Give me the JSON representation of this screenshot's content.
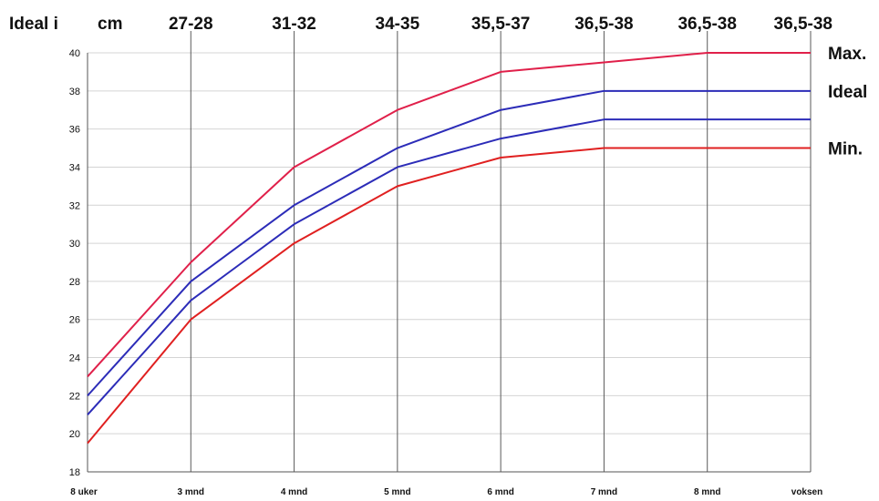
{
  "chart_data": {
    "type": "line",
    "title": "",
    "header": {
      "left": "Ideal i",
      "unit": "cm"
    },
    "categories": [
      "8 uker",
      "3 mnd",
      "4 mnd",
      "5 mnd",
      "6 mnd",
      "7 mnd",
      "8 mnd",
      "voksen"
    ],
    "ideal_ranges": [
      "27-28",
      "31-32",
      "34-35",
      "35,5-37",
      "36,5-38",
      "36,5-38",
      "36,5-38"
    ],
    "ylim": [
      18,
      40
    ],
    "yticks": [
      18,
      20,
      22,
      24,
      26,
      28,
      30,
      32,
      34,
      36,
      38,
      40
    ],
    "grid": true,
    "series": [
      {
        "name": "Max.",
        "color": "#e0204a",
        "values": [
          23,
          29,
          34,
          37,
          39,
          39.5,
          40,
          40
        ]
      },
      {
        "name": "Ideal",
        "color": "#2c2cb8",
        "values": [
          22,
          28,
          32,
          35,
          37,
          38,
          38,
          38
        ]
      },
      {
        "name": "",
        "color": "#2c2cb8",
        "values": [
          21,
          27,
          31,
          34,
          35.5,
          36.5,
          36.5,
          36.5
        ]
      },
      {
        "name": "Min.",
        "color": "#e02020",
        "values": [
          19.5,
          26,
          30,
          33,
          34.5,
          35,
          35,
          35
        ]
      }
    ]
  }
}
